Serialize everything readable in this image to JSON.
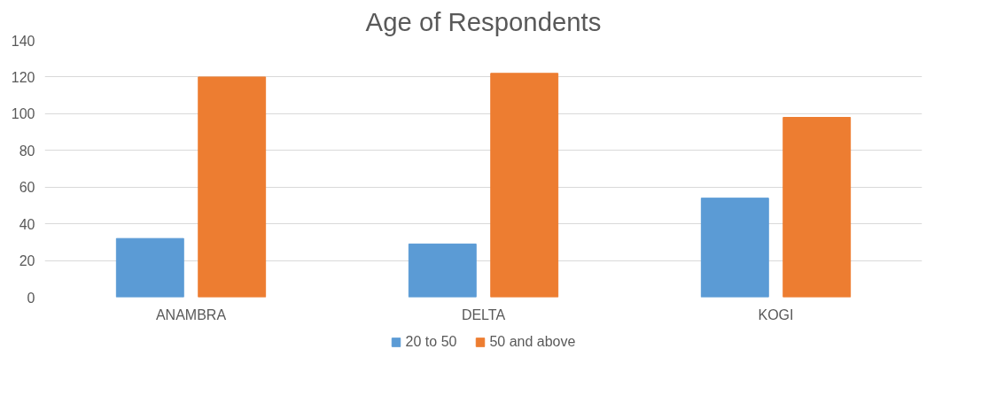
{
  "chart_data": {
    "type": "bar",
    "title": "Age of Respondents",
    "categories": [
      "ANAMBRA",
      "DELTA",
      "KOGI"
    ],
    "series": [
      {
        "name": "20 to 50",
        "color": "#5b9bd5",
        "values": [
          32,
          29,
          54
        ]
      },
      {
        "name": "50 and above",
        "color": "#ed7d31",
        "values": [
          120,
          122,
          98
        ]
      }
    ],
    "ylim": [
      0,
      140
    ],
    "yticks": [
      0,
      20,
      40,
      60,
      80,
      100,
      120,
      140
    ],
    "grid": "y",
    "legend": "bottom"
  }
}
